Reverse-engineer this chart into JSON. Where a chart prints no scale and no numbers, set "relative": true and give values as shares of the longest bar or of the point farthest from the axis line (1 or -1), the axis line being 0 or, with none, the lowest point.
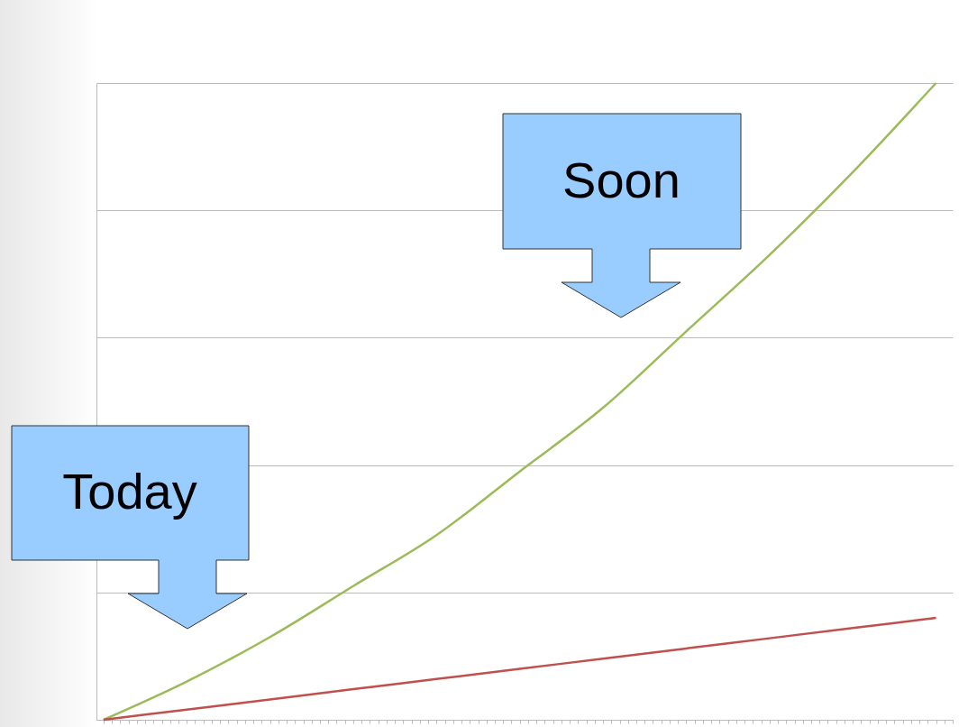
{
  "chart_data": {
    "type": "line",
    "relative": true,
    "categories": [
      null,
      null,
      null,
      null,
      null,
      null,
      null,
      null,
      null,
      null,
      null
    ],
    "series": [
      {
        "color": "#9bbb59",
        "values": [
          0,
          0.06,
          0.13,
          0.21,
          0.29,
          0.39,
          0.49,
          0.61,
          0.73,
          0.86,
          1
        ]
      },
      {
        "color": "#c0504d",
        "values": [
          0,
          0.016,
          0.032,
          0.048,
          0.064,
          0.08,
          0.096,
          0.112,
          0.128,
          0.144,
          0.16
        ]
      }
    ],
    "annotations": [
      "Today",
      "Soon"
    ],
    "grid": "y",
    "legend": false,
    "marker": "none",
    "line_style": "solid"
  }
}
